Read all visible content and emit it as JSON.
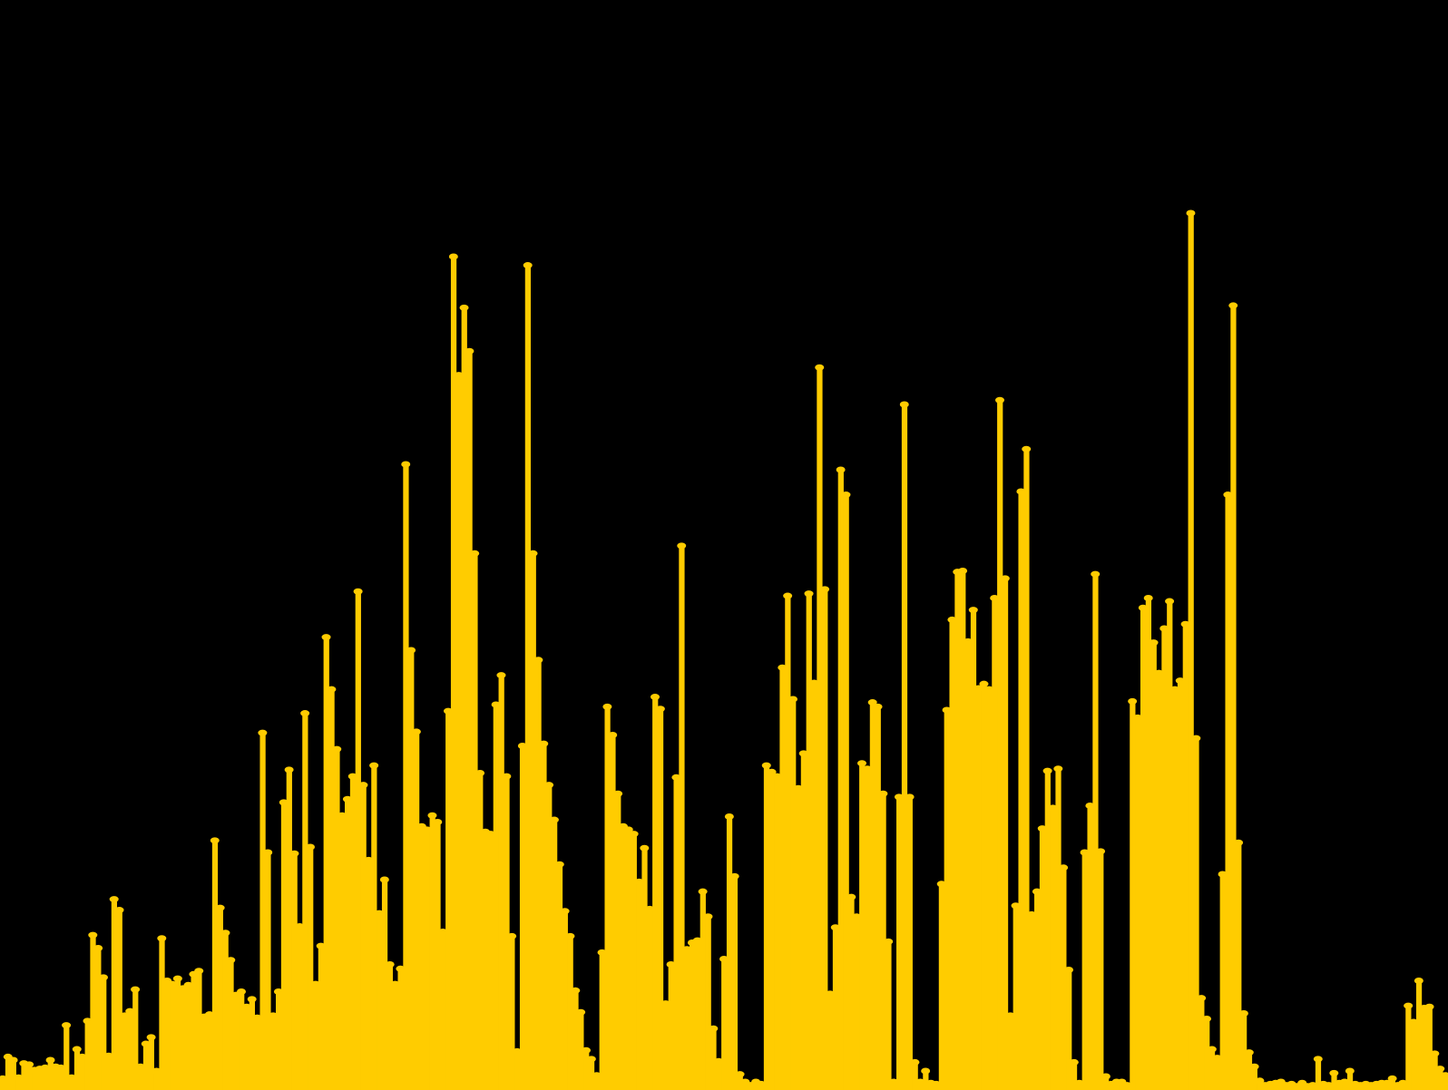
{
  "colors": {
    "background": "#000000",
    "bar": "#FFCC00"
  },
  "chart_data": {
    "type": "bar",
    "title": "",
    "xlabel": "",
    "ylabel": "",
    "grid": false,
    "legend": "none",
    "ylim": [
      0,
      100
    ],
    "values": [
      0.8,
      2.8,
      2.5,
      0.9,
      2.2,
      2.1,
      1.6,
      1.7,
      1.8,
      2.5,
      1.9,
      1.8,
      5.7,
      0.9,
      3.5,
      2.8,
      6.1,
      14.0,
      12.8,
      10.1,
      2.9,
      17.3,
      16.3,
      6.6,
      7.0,
      9.0,
      1.9,
      4.0,
      4.6,
      1.5,
      13.7,
      9.8,
      9.5,
      10.0,
      9.1,
      9.4,
      10.4,
      10.7,
      6.5,
      6.7,
      22.7,
      16.5,
      14.2,
      11.7,
      8.5,
      8.8,
      7.4,
      8.1,
      6.4,
      32.6,
      21.6,
      6.6,
      8.8,
      26.2,
      29.2,
      21.5,
      14.8,
      34.4,
      22.1,
      9.5,
      13.0,
      41.4,
      36.6,
      31.1,
      25.0,
      26.5,
      28.6,
      45.6,
      27.8,
      20.9,
      29.6,
      16.0,
      19.1,
      11.3,
      9.5,
      10.9,
      57.3,
      40.2,
      32.7,
      24.0,
      23.7,
      25.0,
      24.4,
      14.3,
      34.6,
      76.4,
      65.5,
      71.7,
      67.7,
      49.1,
      28.9,
      23.5,
      23.3,
      35.2,
      37.9,
      28.6,
      13.9,
      3.3,
      31.4,
      75.6,
      49.1,
      39.3,
      31.6,
      27.8,
      24.6,
      20.5,
      16.2,
      13.9,
      8.9,
      6.9,
      3.4,
      2.6,
      1.1,
      12.4,
      35.0,
      32.4,
      27.0,
      24.0,
      23.7,
      23.3,
      18.9,
      22.0,
      16.4,
      35.9,
      34.8,
      7.7,
      11.3,
      28.5,
      49.8,
      12.7,
      13.3,
      13.5,
      18.0,
      15.7,
      5.4,
      2.4,
      11.8,
      24.9,
      19.4,
      1.2,
      0.5,
      0.2,
      0.5,
      0.3,
      29.6,
      29.0,
      28.6,
      38.6,
      45.2,
      35.7,
      27.5,
      30.7,
      45.4,
      37.2,
      66.2,
      45.8,
      8.6,
      14.7,
      56.8,
      54.5,
      17.5,
      15.7,
      29.8,
      29.3,
      35.4,
      35.0,
      27.0,
      13.4,
      0.5,
      26.7,
      62.8,
      26.7,
      2.3,
      0.5,
      1.5,
      0.4,
      0.3,
      18.7,
      34.7,
      43.0,
      47.4,
      47.5,
      41.0,
      43.9,
      36.7,
      37.1,
      36.6,
      45.0,
      63.2,
      46.8,
      6.6,
      16.7,
      54.8,
      58.7,
      15.9,
      18.0,
      23.8,
      29.1,
      25.7,
      29.3,
      20.2,
      10.8,
      2.3,
      0.4,
      21.6,
      25.9,
      47.2,
      21.7,
      1.0,
      0.3,
      0.5,
      0.5,
      0.2,
      35.5,
      34.0,
      44.1,
      45.0,
      40.9,
      38.1,
      42.2,
      44.7,
      36.6,
      37.4,
      42.6,
      80.4,
      32.1,
      8.2,
      6.3,
      3.5,
      2.7,
      19.6,
      54.5,
      71.9,
      22.5,
      6.8,
      3.2,
      1.9,
      0.6,
      0.2,
      0.3,
      0.4,
      0.5,
      0.2,
      0.3,
      0.1,
      0.4,
      0.1,
      0.2,
      2.6,
      0.3,
      0.2,
      1.3,
      0.4,
      0.5,
      1.5,
      0.3,
      0.2,
      0.3,
      0.2,
      0.3,
      0.4,
      0.4,
      0.8,
      0.2,
      0.4,
      7.5,
      6.0,
      9.8,
      7.3,
      7.4,
      3.1,
      1.7,
      1.1
    ]
  }
}
